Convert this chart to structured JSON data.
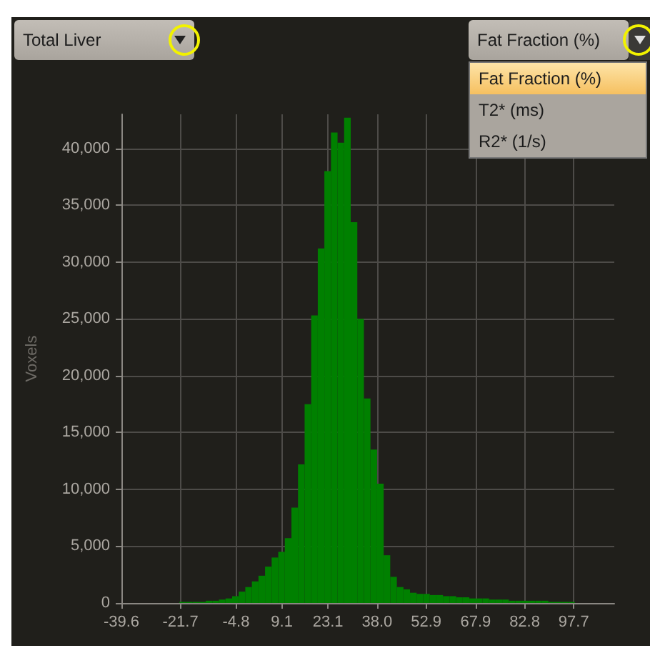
{
  "chart_data": {
    "type": "histogram",
    "ylabel": "Voxels",
    "color": "#008000",
    "bins": [
      -24,
      -22,
      -20,
      -18,
      -16,
      -14,
      -12,
      -10,
      -8,
      -6,
      -4,
      -2,
      0,
      2,
      4,
      6,
      8,
      10,
      12,
      14,
      16,
      18,
      20,
      22,
      24,
      26,
      28,
      30,
      32,
      34,
      36,
      38,
      40,
      42,
      44,
      46,
      48,
      50,
      52,
      54,
      56,
      58,
      60,
      62,
      64,
      66,
      68,
      70,
      72,
      74,
      76,
      78,
      80,
      82,
      84,
      86,
      88,
      90,
      92,
      94,
      96,
      98,
      100
    ],
    "values": [
      0,
      100,
      100,
      100,
      100,
      200,
      200,
      300,
      400,
      600,
      1000,
      1400,
      1900,
      2400,
      3200,
      4000,
      4500,
      5700,
      8400,
      12200,
      17500,
      25300,
      31200,
      38000,
      41400,
      40500,
      42700,
      33500,
      25000,
      18000,
      13500,
      10500,
      4200,
      2300,
      1400,
      1200,
      900,
      800,
      800,
      700,
      700,
      600,
      600,
      500,
      500,
      400,
      400,
      400,
      300,
      300,
      300,
      200,
      200,
      200,
      200,
      200,
      200,
      100,
      100,
      100,
      100,
      0
    ],
    "xlim": [
      -39.6,
      110
    ],
    "xticks": [
      -39.6,
      -21.7,
      -4.8,
      9.1,
      23.1,
      {
        "value": 38,
        "label": "38.0"
      },
      52.9,
      67.9,
      82.8,
      97.7
    ],
    "ylim": [
      0,
      43000
    ],
    "yticks": [
      {
        "value": 0,
        "label": "0"
      },
      {
        "value": 5000,
        "label": "5,000"
      },
      {
        "value": 10000,
        "label": "10,000"
      },
      {
        "value": 15000,
        "label": "15,000"
      },
      {
        "value": 20000,
        "label": "20,000"
      },
      {
        "value": 25000,
        "label": "25,000"
      },
      {
        "value": 30000,
        "label": "30,000"
      },
      {
        "value": 35000,
        "label": "35,000"
      },
      {
        "value": 40000,
        "label": "40,000"
      }
    ],
    "grid": true,
    "annotations": [
      "Total Liver",
      "Fat Fraction (%)",
      "Fat Fraction (%)",
      "T2* (ms)",
      "R2* (1/s)"
    ]
  }
}
